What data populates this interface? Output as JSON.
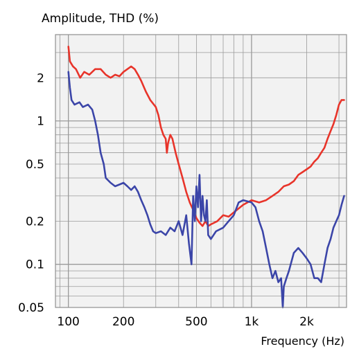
{
  "chart_data": {
    "type": "line",
    "title": "",
    "ylabel": "Amplitude, THD (%)",
    "xlabel": "Frequency (Hz)",
    "x_scale": "log",
    "y_scale": "log",
    "xlim": [
      85,
      3300
    ],
    "ylim": [
      0.05,
      4.0
    ],
    "x_ticks": [
      {
        "value": 100,
        "label": "100"
      },
      {
        "value": 200,
        "label": "200"
      },
      {
        "value": 500,
        "label": "500"
      },
      {
        "value": 1000,
        "label": "1k"
      },
      {
        "value": 2000,
        "label": "2k"
      }
    ],
    "y_ticks": [
      {
        "value": 2,
        "label": "2"
      },
      {
        "value": 1,
        "label": "1"
      },
      {
        "value": 0.5,
        "label": "0.5"
      },
      {
        "value": 0.2,
        "label": "0.2"
      },
      {
        "value": 0.1,
        "label": "0.1"
      },
      {
        "value": 0.05,
        "label": "0.05"
      }
    ],
    "grid": true,
    "plot_background": "#f2f2f2",
    "grid_color": "#9a9a9a",
    "series": [
      {
        "color": "#e8342a",
        "points": [
          [
            100,
            3.3
          ],
          [
            102,
            2.6
          ],
          [
            106,
            2.4
          ],
          [
            110,
            2.3
          ],
          [
            116,
            2.0
          ],
          [
            122,
            2.2
          ],
          [
            130,
            2.1
          ],
          [
            140,
            2.3
          ],
          [
            150,
            2.3
          ],
          [
            160,
            2.1
          ],
          [
            170,
            2.0
          ],
          [
            180,
            2.1
          ],
          [
            190,
            2.05
          ],
          [
            200,
            2.2
          ],
          [
            210,
            2.3
          ],
          [
            220,
            2.4
          ],
          [
            230,
            2.3
          ],
          [
            240,
            2.1
          ],
          [
            250,
            1.9
          ],
          [
            265,
            1.6
          ],
          [
            280,
            1.4
          ],
          [
            300,
            1.25
          ],
          [
            310,
            1.1
          ],
          [
            320,
            0.9
          ],
          [
            330,
            0.8
          ],
          [
            340,
            0.75
          ],
          [
            345,
            0.6
          ],
          [
            350,
            0.7
          ],
          [
            360,
            0.8
          ],
          [
            370,
            0.75
          ],
          [
            385,
            0.6
          ],
          [
            400,
            0.5
          ],
          [
            420,
            0.4
          ],
          [
            440,
            0.32
          ],
          [
            460,
            0.27
          ],
          [
            480,
            0.24
          ],
          [
            500,
            0.21
          ],
          [
            520,
            0.195
          ],
          [
            540,
            0.185
          ],
          [
            560,
            0.2
          ],
          [
            580,
            0.185
          ],
          [
            600,
            0.19
          ],
          [
            650,
            0.2
          ],
          [
            700,
            0.22
          ],
          [
            750,
            0.215
          ],
          [
            800,
            0.23
          ],
          [
            900,
            0.26
          ],
          [
            1000,
            0.28
          ],
          [
            1100,
            0.27
          ],
          [
            1200,
            0.28
          ],
          [
            1300,
            0.3
          ],
          [
            1400,
            0.32
          ],
          [
            1500,
            0.35
          ],
          [
            1600,
            0.36
          ],
          [
            1700,
            0.38
          ],
          [
            1800,
            0.42
          ],
          [
            1900,
            0.44
          ],
          [
            2000,
            0.46
          ],
          [
            2100,
            0.48
          ],
          [
            2200,
            0.52
          ],
          [
            2300,
            0.55
          ],
          [
            2400,
            0.6
          ],
          [
            2500,
            0.65
          ],
          [
            2600,
            0.75
          ],
          [
            2700,
            0.85
          ],
          [
            2800,
            0.95
          ],
          [
            2900,
            1.1
          ],
          [
            3000,
            1.3
          ],
          [
            3100,
            1.4
          ],
          [
            3200,
            1.4
          ]
        ]
      },
      {
        "color": "#3b45a8",
        "points": [
          [
            100,
            2.2
          ],
          [
            102,
            1.7
          ],
          [
            104,
            1.4
          ],
          [
            108,
            1.3
          ],
          [
            115,
            1.35
          ],
          [
            120,
            1.25
          ],
          [
            128,
            1.3
          ],
          [
            135,
            1.2
          ],
          [
            140,
            1.0
          ],
          [
            145,
            0.8
          ],
          [
            150,
            0.6
          ],
          [
            156,
            0.5
          ],
          [
            160,
            0.4
          ],
          [
            170,
            0.37
          ],
          [
            180,
            0.35
          ],
          [
            190,
            0.36
          ],
          [
            200,
            0.37
          ],
          [
            210,
            0.35
          ],
          [
            220,
            0.33
          ],
          [
            230,
            0.35
          ],
          [
            240,
            0.32
          ],
          [
            250,
            0.28
          ],
          [
            260,
            0.25
          ],
          [
            270,
            0.22
          ],
          [
            280,
            0.19
          ],
          [
            290,
            0.17
          ],
          [
            300,
            0.165
          ],
          [
            320,
            0.17
          ],
          [
            340,
            0.16
          ],
          [
            360,
            0.18
          ],
          [
            380,
            0.17
          ],
          [
            400,
            0.2
          ],
          [
            420,
            0.16
          ],
          [
            440,
            0.22
          ],
          [
            455,
            0.14
          ],
          [
            470,
            0.1
          ],
          [
            480,
            0.3
          ],
          [
            490,
            0.2
          ],
          [
            500,
            0.35
          ],
          [
            510,
            0.25
          ],
          [
            520,
            0.42
          ],
          [
            530,
            0.2
          ],
          [
            540,
            0.3
          ],
          [
            550,
            0.22
          ],
          [
            560,
            0.2
          ],
          [
            570,
            0.28
          ],
          [
            580,
            0.16
          ],
          [
            600,
            0.15
          ],
          [
            640,
            0.17
          ],
          [
            700,
            0.18
          ],
          [
            750,
            0.2
          ],
          [
            800,
            0.22
          ],
          [
            850,
            0.27
          ],
          [
            900,
            0.28
          ],
          [
            1000,
            0.27
          ],
          [
            1050,
            0.25
          ],
          [
            1100,
            0.2
          ],
          [
            1150,
            0.17
          ],
          [
            1200,
            0.13
          ],
          [
            1250,
            0.1
          ],
          [
            1300,
            0.08
          ],
          [
            1350,
            0.09
          ],
          [
            1400,
            0.075
          ],
          [
            1450,
            0.08
          ],
          [
            1480,
            0.05
          ],
          [
            1500,
            0.07
          ],
          [
            1550,
            0.08
          ],
          [
            1600,
            0.09
          ],
          [
            1700,
            0.12
          ],
          [
            1800,
            0.13
          ],
          [
            1900,
            0.12
          ],
          [
            2000,
            0.11
          ],
          [
            2100,
            0.1
          ],
          [
            2200,
            0.08
          ],
          [
            2300,
            0.08
          ],
          [
            2400,
            0.075
          ],
          [
            2500,
            0.1
          ],
          [
            2600,
            0.13
          ],
          [
            2700,
            0.15
          ],
          [
            2800,
            0.18
          ],
          [
            2900,
            0.2
          ],
          [
            3000,
            0.22
          ],
          [
            3100,
            0.26
          ],
          [
            3200,
            0.3
          ]
        ]
      }
    ]
  }
}
